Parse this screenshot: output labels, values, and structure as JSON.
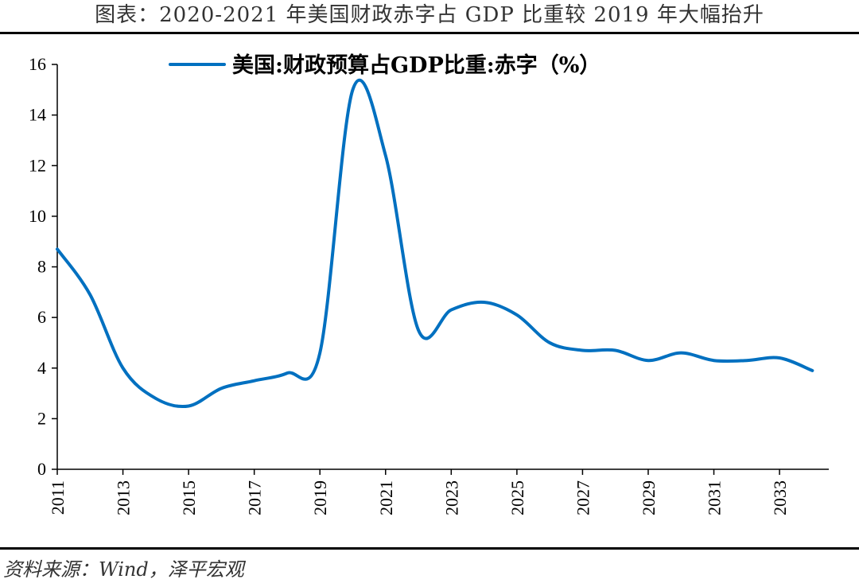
{
  "header": {
    "title": "图表：2020-2021 年美国财政赤字占 GDP 比重较 2019 年大幅抬升"
  },
  "footer": {
    "source": "资料来源：Wind，泽平宏观"
  },
  "chart_data": {
    "type": "line",
    "title": "",
    "xlabel": "",
    "ylabel": "",
    "ylim": [
      0,
      16
    ],
    "xlim": [
      2011,
      2034.5
    ],
    "yticks": [
      0,
      2,
      4,
      6,
      8,
      10,
      12,
      14,
      16
    ],
    "xticks": [
      2011,
      2013,
      2015,
      2017,
      2019,
      2021,
      2023,
      2025,
      2027,
      2029,
      2031,
      2033
    ],
    "grid": false,
    "legend_position": "top",
    "series_color": "#0070c0",
    "series": [
      {
        "name": "美国:财政预算占GDP比重:赤字（%）",
        "x": [
          2011,
          2012,
          2013,
          2014,
          2015,
          2016,
          2017,
          2018,
          2019,
          2020,
          2021,
          2022,
          2023,
          2024,
          2025,
          2026,
          2027,
          2028,
          2029,
          2030,
          2031,
          2032,
          2033,
          2034
        ],
        "values": [
          8.7,
          6.9,
          4.0,
          2.8,
          2.5,
          3.2,
          3.5,
          3.8,
          4.6,
          15.0,
          12.4,
          5.5,
          6.3,
          6.6,
          6.1,
          5.0,
          4.7,
          4.7,
          4.3,
          4.6,
          4.3,
          4.3,
          4.4,
          3.9
        ]
      }
    ]
  }
}
